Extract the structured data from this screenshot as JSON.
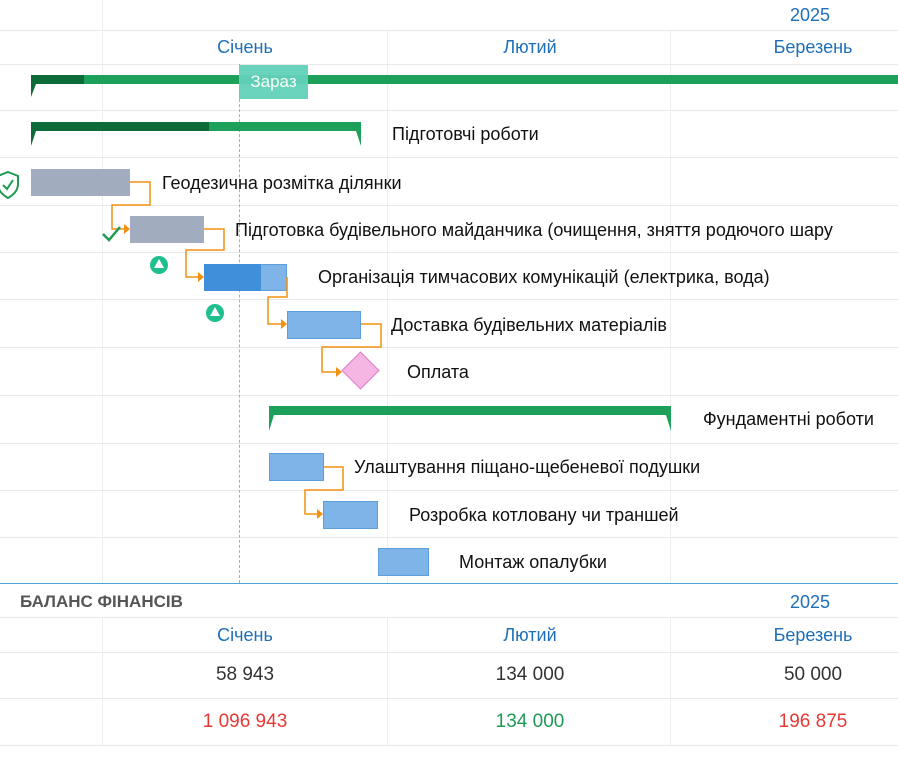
{
  "timeline": {
    "year": "2025",
    "months": [
      "Січень",
      "Лютий",
      "Березень"
    ],
    "now_label": "Зараз"
  },
  "tasks": [
    {
      "name": "Підготовчі роботи",
      "type": "summary"
    },
    {
      "name": "Геодезична розмітка ділянки",
      "type": "task",
      "status": "verified"
    },
    {
      "name": "Підготовка будівельного майданчика (очищення, зняття родючого шару",
      "type": "task",
      "status": "done"
    },
    {
      "name": "Організація тимчасових комунікацій (електрика, вода)",
      "type": "task",
      "progress_percent": 65
    },
    {
      "name": "Доставка будівельних матеріалів",
      "type": "task"
    },
    {
      "name": "Оплата",
      "type": "milestone"
    },
    {
      "name": "Фундаментні роботи",
      "type": "summary"
    },
    {
      "name": "Улаштування піщано-щебеневої подушки",
      "type": "task"
    },
    {
      "name": "Розробка котловану чи траншей",
      "type": "task"
    },
    {
      "name": "Монтаж опалубки",
      "type": "task"
    }
  ],
  "finance": {
    "title": "БАЛАНС ФІНАНСІВ",
    "year": "2025",
    "months": [
      "Січень",
      "Лютий",
      "Березень"
    ],
    "row1": [
      "58 943",
      "134 000",
      "50 000"
    ],
    "row2": [
      "1 096 943",
      "134 000",
      "196 875"
    ]
  },
  "colors": {
    "accent": "#1e6fb8",
    "summary_green": "#1da05a",
    "summary_dark": "#0d6b3a",
    "now_marker": "#5fd3b8",
    "dependency": "#f29111",
    "milestone": "#f5b6e3",
    "negative": "#e53935",
    "positive": "#1e9a55"
  }
}
